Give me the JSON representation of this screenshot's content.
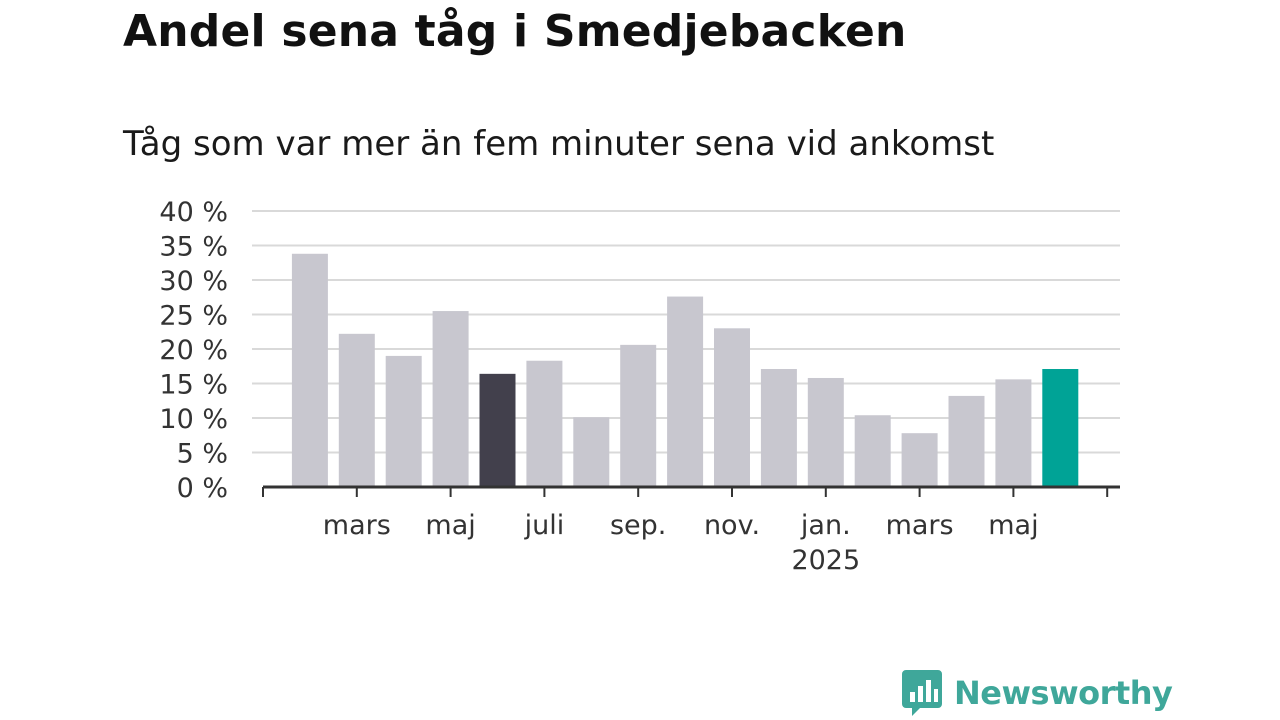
{
  "title": "Andel sena tåg i Smedjebacken",
  "subtitle": "Tåg som var mer än fem minuter sena vid ankomst",
  "brand": {
    "name": "Newsworthy",
    "color": "#3fa79a",
    "icon": "bar-chart-speech-bubble-icon"
  },
  "colors": {
    "bar": "#c8c7cf",
    "highlight_dark": "#42404c",
    "highlight_current": "#00a396",
    "grid": "#d9d9d9",
    "axis": "#333333"
  },
  "chart_data": {
    "type": "bar",
    "categories": [
      "2024-02",
      "2024-03",
      "2024-04",
      "2024-05",
      "2024-06",
      "2024-07",
      "2024-08",
      "2024-09",
      "2024-10",
      "2024-11",
      "2024-12",
      "2025-01",
      "2025-02",
      "2025-03",
      "2025-04",
      "2025-05",
      "2025-06"
    ],
    "values": [
      33.8,
      22.2,
      19.0,
      25.5,
      16.4,
      18.3,
      10.1,
      20.6,
      27.6,
      23.0,
      17.1,
      15.8,
      10.4,
      7.8,
      13.2,
      15.6,
      17.1
    ],
    "highlight": {
      "2024-06": "dark",
      "2025-06": "current"
    },
    "ylim": [
      0,
      40
    ],
    "yticks": [
      "0 %",
      "5 %",
      "10 %",
      "15 %",
      "20 %",
      "25 %",
      "30 %",
      "35 %",
      "40 %"
    ],
    "ytick_values": [
      0,
      5,
      10,
      15,
      20,
      25,
      30,
      35,
      40
    ],
    "xticks": [
      {
        "at": "2024-03",
        "label": "mars",
        "sub": ""
      },
      {
        "at": "2024-05",
        "label": "maj",
        "sub": ""
      },
      {
        "at": "2024-07",
        "label": "juli",
        "sub": ""
      },
      {
        "at": "2024-09",
        "label": "sep.",
        "sub": ""
      },
      {
        "at": "2024-11",
        "label": "nov.",
        "sub": ""
      },
      {
        "at": "2025-01",
        "label": "jan.",
        "sub": "2025"
      },
      {
        "at": "2025-03",
        "label": "mars",
        "sub": ""
      },
      {
        "at": "2025-05",
        "label": "maj",
        "sub": ""
      }
    ],
    "grid": true,
    "legend": "none",
    "xlabel": "",
    "ylabel": ""
  }
}
